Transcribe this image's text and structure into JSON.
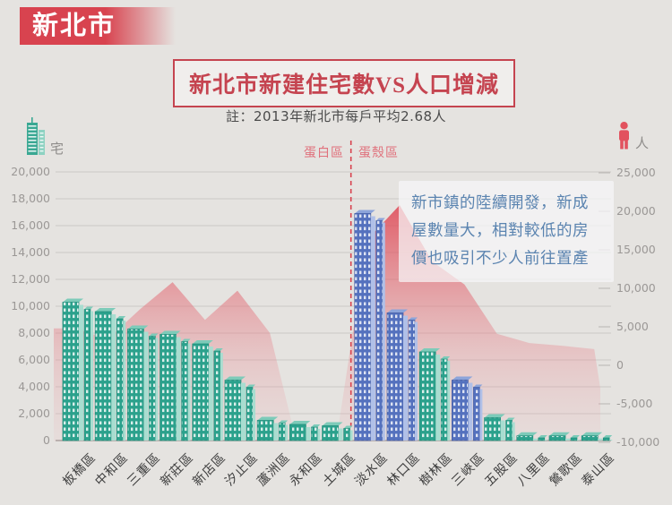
{
  "banner": {
    "label": "新北市"
  },
  "title": {
    "text": "新北市新建住宅數VS人口增減"
  },
  "note": {
    "text": "註：2013年新北市每戶平均2.68人"
  },
  "axes": {
    "left_unit": "宅",
    "right_unit": "人",
    "left_ticks": [
      "20,000",
      "18,000",
      "16,000",
      "14,000",
      "12,000",
      "10,000",
      "8,000",
      "6,000",
      "4,000",
      "2,000",
      "0"
    ],
    "right_ticks": [
      "25,000",
      "20,000",
      "15,000",
      "10,000",
      "5,000",
      "0",
      "-5,000",
      "-10,000"
    ]
  },
  "zones": {
    "left_label": "蛋白區",
    "right_label": "蛋殼區"
  },
  "annotation": {
    "text": "新市鎮的陸續開發，新成屋數量大，相對較低的房價也吸引不少人前往置產"
  },
  "colors": {
    "accent_red": "#d8434f",
    "title_red": "#c54450",
    "zone_label_pink": "#e0717c",
    "area_pink": "#df4653",
    "bar_teal": "#2ba18c",
    "bar_blue": "#5471be",
    "annotation_blue": "#5b84b0",
    "person_icon_red": "#e2525e",
    "building_icon_teal": "#3aa893"
  },
  "chart_data": {
    "type": "bar",
    "subtype": "bar+area combo, dual axis",
    "categories": [
      "板橋區",
      "中和區",
      "三重區",
      "新莊區",
      "新店區",
      "汐止區",
      "蘆洲區",
      "永和區",
      "土城區",
      "淡水區",
      "林口區",
      "樹林區",
      "三峽區",
      "五股區",
      "八里區",
      "鶯歌區",
      "泰山區"
    ],
    "series": [
      {
        "name": "新建住宅數",
        "type": "bar",
        "axis": "left",
        "unit": "宅",
        "values": [
          10300,
          9600,
          8300,
          7900,
          7200,
          4500,
          1500,
          1200,
          1100,
          16900,
          9500,
          6600,
          4500,
          1700,
          350,
          350,
          350
        ],
        "blue_highlight_districts": [
          "淡水區",
          "林口區",
          "三峽區"
        ]
      },
      {
        "name": "人口增減",
        "type": "area",
        "axis": "right",
        "unit": "人",
        "values": [
          4800,
          3400,
          7300,
          10800,
          5900,
          9700,
          4200,
          -13000,
          -11000,
          16300,
          20800,
          13500,
          10500,
          4100,
          2900,
          2550,
          2100
        ],
        "edge_end_value": -3000
      }
    ],
    "left_axis": {
      "label": "宅",
      "min": 0,
      "max": 20000,
      "step": 2000
    },
    "right_axis": {
      "label": "人",
      "min": -10000,
      "max": 25000,
      "step": 5000
    },
    "divider": {
      "between": [
        "土城區",
        "淡水區"
      ],
      "left_zone": "蛋白區",
      "right_zone": "蛋殼區"
    },
    "grid": true,
    "legend": "none"
  }
}
